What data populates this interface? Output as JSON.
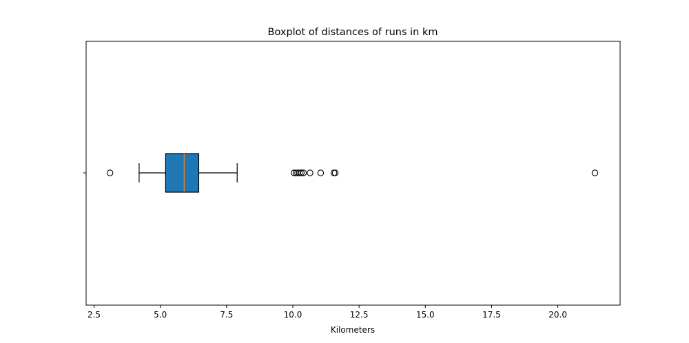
{
  "chart_data": {
    "type": "boxplot",
    "orientation": "horizontal",
    "title": "Boxplot of distances of runs in km",
    "xlabel": "Kilometers",
    "ylabel": "",
    "xlim": [
      2.2,
      22.35
    ],
    "xticks": [
      2.5,
      5.0,
      7.5,
      10.0,
      12.5,
      15.0,
      17.5,
      20.0
    ],
    "xtick_labels": [
      "2.5",
      "5.0",
      "7.5",
      "10.0",
      "12.5",
      "15.0",
      "17.5",
      "20.0"
    ],
    "grid": false,
    "box": {
      "whisker_low": 4.2,
      "q1": 5.2,
      "median": 5.9,
      "q3": 6.45,
      "whisker_high": 7.9,
      "fill_color": "#1f77b4",
      "median_color": "#ff7f0e"
    },
    "outliers": [
      3.1,
      10.05,
      10.12,
      10.18,
      10.25,
      10.32,
      10.4,
      10.65,
      11.05,
      11.55,
      11.6,
      21.4
    ]
  }
}
